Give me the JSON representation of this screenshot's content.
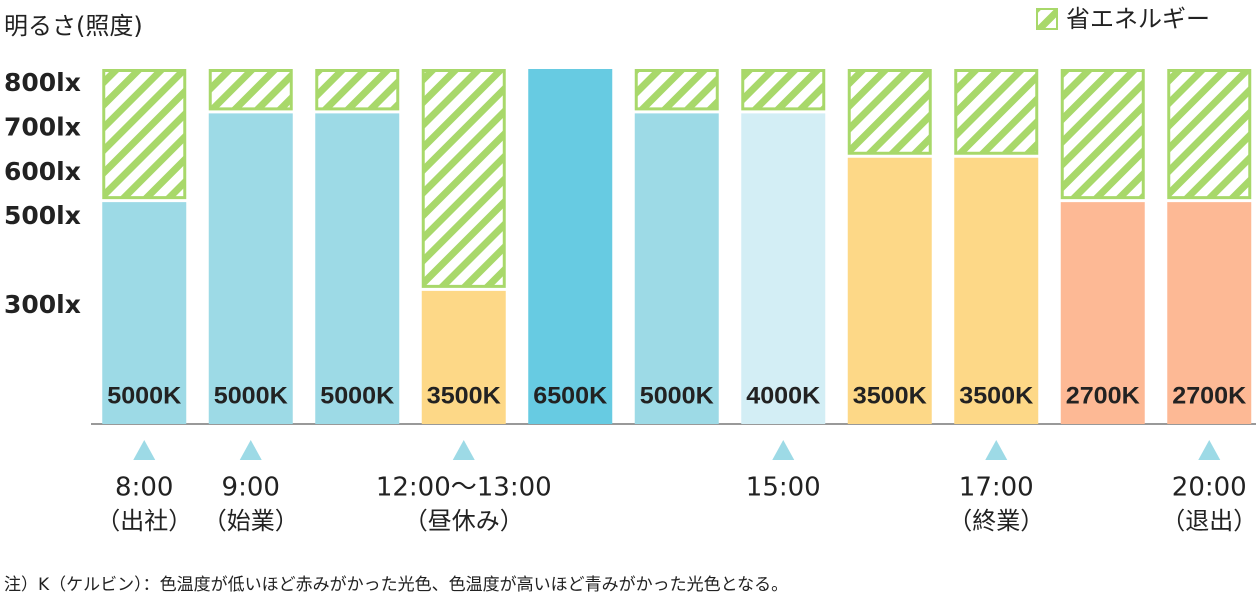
{
  "chart_data": {
    "type": "stacked-bar",
    "y_axis_title": "明るさ(照度)",
    "categories": [
      "8:00",
      "9:00",
      null,
      "12:00〜13:00",
      null,
      null,
      "15:00",
      null,
      "17:00",
      null,
      "20:00"
    ],
    "category_notes": [
      "（出社）",
      "（始業）",
      null,
      "（昼休み）",
      null,
      null,
      null,
      null,
      "（終業）",
      null,
      "（退出）"
    ],
    "values": [
      500,
      700,
      700,
      300,
      800,
      700,
      700,
      600,
      600,
      500,
      500
    ],
    "colors": [
      "#9ddae6",
      "#9ddae6",
      "#9ddae6",
      "#fdd887",
      "#67cbe2",
      "#9ddae6",
      "#d3eef5",
      "#fdd887",
      "#fdd887",
      "#fdb995",
      "#fdb995"
    ],
    "color_temperatures": [
      "5000K",
      "5000K",
      "5000K",
      "3500K",
      "6500K",
      "5000K",
      "4000K",
      "3500K",
      "3500K",
      "2700K",
      "2700K"
    ],
    "series": [
      {
        "name": "省エネルギー",
        "color": "#a8d86a",
        "values": [
          300,
          100,
          100,
          500,
          0,
          100,
          100,
          200,
          200,
          300,
          300
        ]
      }
    ],
    "ylim": [
      0,
      800
    ],
    "yticks": [
      {
        "value": 300,
        "label": "300lx"
      },
      {
        "value": 500,
        "label": "500lx"
      },
      {
        "value": 600,
        "label": "600lx"
      },
      {
        "value": 700,
        "label": "700lx"
      },
      {
        "value": 800,
        "label": "800lx"
      }
    ],
    "legend": "top-right",
    "note": "注）K（ケルビン）：色温度が低いほど赤みがかった光色、色温度が高いほど青みがかった光色となる。"
  }
}
